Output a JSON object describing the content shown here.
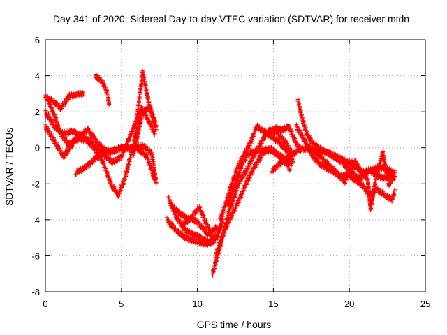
{
  "chart_data": {
    "type": "scatter",
    "title": "Day 341 of 2020, Sidereal Day-to-day VTEC variation (SDTVAR) for receiver mtdn",
    "xlabel": "GPS time / hours",
    "ylabel": "SDTVAR / TECUs",
    "xlim": [
      0,
      25
    ],
    "ylim": [
      -8,
      6
    ],
    "xticks": [
      0,
      5,
      10,
      15,
      20,
      25
    ],
    "yticks": [
      -8,
      -6,
      -4,
      -2,
      0,
      2,
      4,
      6
    ],
    "grid": true,
    "marker": "plus",
    "series": [
      {
        "name": "SDTVAR",
        "color": "#ff0000",
        "tracks": [
          [
            [
              0.0,
              2.8
            ],
            [
              0.5,
              2.6
            ],
            [
              1.0,
              2.2
            ],
            [
              1.6,
              2.9
            ],
            [
              2.5,
              3.0
            ]
          ],
          [
            [
              0.0,
              2.0
            ],
            [
              0.6,
              1.2
            ],
            [
              1.1,
              0.8
            ],
            [
              1.8,
              0.9
            ],
            [
              2.5,
              0.6
            ],
            [
              3.2,
              0.0
            ],
            [
              3.8,
              -0.8
            ],
            [
              4.3,
              -2.0
            ],
            [
              4.8,
              -2.6
            ],
            [
              5.2,
              -1.8
            ],
            [
              5.8,
              0.2
            ],
            [
              6.3,
              2.2
            ],
            [
              6.8,
              1.5
            ],
            [
              7.2,
              0.8
            ]
          ],
          [
            [
              0.0,
              1.2
            ],
            [
              0.5,
              0.5
            ],
            [
              1.2,
              -0.5
            ],
            [
              2.0,
              0.5
            ],
            [
              2.8,
              1.0
            ],
            [
              3.5,
              0.2
            ],
            [
              4.2,
              -0.3
            ],
            [
              4.9,
              0.0
            ],
            [
              5.6,
              0.0
            ],
            [
              6.4,
              0.1
            ],
            [
              7.0,
              -0.3
            ],
            [
              7.3,
              -2.0
            ]
          ],
          [
            [
              0.2,
              2.6
            ],
            [
              0.6,
              1.8
            ],
            [
              1.0,
              0.8
            ],
            [
              1.5,
              0.2
            ],
            [
              2.2,
              0.5
            ],
            [
              2.9,
              0.4
            ],
            [
              3.6,
              -0.2
            ],
            [
              4.4,
              -0.8
            ],
            [
              5.0,
              -0.5
            ],
            [
              5.5,
              0.5
            ],
            [
              6.0,
              1.5
            ],
            [
              6.4,
              4.2
            ],
            [
              6.8,
              2.5
            ],
            [
              7.3,
              1.0
            ]
          ],
          [
            [
              2.0,
              -1.4
            ],
            [
              2.8,
              -1.0
            ],
            [
              3.4,
              -0.5
            ],
            [
              4.0,
              -0.2
            ],
            [
              4.6,
              -0.1
            ],
            [
              5.3,
              0.0
            ],
            [
              6.0,
              0.0
            ],
            [
              6.7,
              -0.5
            ],
            [
              7.2,
              -1.8
            ]
          ],
          [
            [
              3.3,
              4.0
            ],
            [
              3.8,
              3.6
            ],
            [
              4.1,
              3.0
            ],
            [
              4.2,
              2.4
            ]
          ],
          [
            [
              5.8,
              -0.4
            ],
            [
              6.4,
              2.0
            ],
            [
              6.9,
              2.2
            ],
            [
              7.3,
              1.2
            ]
          ],
          [
            [
              8.1,
              -2.8
            ],
            [
              8.6,
              -3.8
            ],
            [
              9.2,
              -4.6
            ],
            [
              9.8,
              -4.8
            ],
            [
              10.4,
              -5.1
            ],
            [
              10.9,
              -5.3
            ],
            [
              11.3,
              -5.0
            ],
            [
              11.7,
              -3.8
            ]
          ],
          [
            [
              8.0,
              -4.0
            ],
            [
              8.5,
              -4.5
            ],
            [
              9.2,
              -5.0
            ],
            [
              10.0,
              -5.2
            ],
            [
              10.6,
              -5.4
            ],
            [
              11.1,
              -5.0
            ],
            [
              11.6,
              -4.4
            ]
          ],
          [
            [
              8.3,
              -3.2
            ],
            [
              8.9,
              -3.7
            ],
            [
              9.5,
              -4.0
            ],
            [
              10.1,
              -3.3
            ],
            [
              10.6,
              -4.2
            ],
            [
              11.0,
              -5.0
            ]
          ],
          [
            [
              9.0,
              -4.3
            ],
            [
              9.6,
              -3.9
            ],
            [
              10.2,
              -4.3
            ],
            [
              10.7,
              -4.8
            ],
            [
              11.3,
              -4.4
            ]
          ],
          [
            [
              11.0,
              -7.0
            ],
            [
              11.3,
              -6.1
            ],
            [
              11.7,
              -4.8
            ],
            [
              12.1,
              -3.5
            ],
            [
              12.5,
              -2.5
            ],
            [
              12.8,
              -1.8
            ],
            [
              13.2,
              -1.3
            ],
            [
              13.6,
              -0.6
            ],
            [
              14.0,
              0.0
            ],
            [
              14.4,
              0.6
            ],
            [
              14.8,
              1.0
            ],
            [
              15.3,
              0.8
            ],
            [
              15.8,
              0.3
            ],
            [
              16.2,
              -0.3
            ]
          ],
          [
            [
              11.2,
              -6.0
            ],
            [
              11.6,
              -5.0
            ],
            [
              12.0,
              -4.2
            ],
            [
              12.4,
              -3.5
            ],
            [
              12.8,
              -2.8
            ],
            [
              13.3,
              -1.8
            ],
            [
              13.8,
              -1.0
            ],
            [
              14.3,
              -0.3
            ],
            [
              14.8,
              0.0
            ],
            [
              15.3,
              -0.4
            ],
            [
              15.8,
              -0.6
            ],
            [
              16.2,
              -0.9
            ]
          ],
          [
            [
              11.5,
              -4.0
            ],
            [
              11.9,
              -3.0
            ],
            [
              12.2,
              -2.2
            ],
            [
              12.6,
              -1.2
            ],
            [
              13.0,
              -0.5
            ],
            [
              13.5,
              0.3
            ],
            [
              13.9,
              1.2
            ],
            [
              14.4,
              0.9
            ],
            [
              14.9,
              0.6
            ],
            [
              15.4,
              0.3
            ],
            [
              15.9,
              -0.2
            ],
            [
              16.3,
              -0.8
            ]
          ],
          [
            [
              12.0,
              -3.2
            ],
            [
              12.5,
              -2.0
            ],
            [
              13.0,
              -0.8
            ],
            [
              13.4,
              -0.3
            ],
            [
              13.9,
              -0.2
            ],
            [
              14.4,
              -0.1
            ],
            [
              15.0,
              -0.2
            ],
            [
              15.6,
              -0.6
            ],
            [
              16.1,
              -1.2
            ]
          ],
          [
            [
              14.7,
              0.9
            ],
            [
              15.2,
              1.1
            ],
            [
              15.6,
              1.0
            ],
            [
              16.0,
              1.2
            ],
            [
              16.4,
              0.4
            ],
            [
              16.8,
              -0.2
            ]
          ],
          [
            [
              14.9,
              -1.3
            ],
            [
              15.4,
              -0.9
            ],
            [
              15.9,
              -0.6
            ],
            [
              16.4,
              -0.3
            ],
            [
              16.8,
              0.0
            ]
          ],
          [
            [
              16.6,
              2.7
            ],
            [
              16.9,
              1.6
            ],
            [
              17.2,
              0.8
            ],
            [
              17.6,
              0.2
            ],
            [
              18.0,
              0.0
            ],
            [
              18.5,
              -0.3
            ],
            [
              19.0,
              -0.5
            ],
            [
              19.5,
              -0.8
            ],
            [
              20.0,
              -1.2
            ],
            [
              20.4,
              -1.6
            ],
            [
              20.8,
              -1.7
            ],
            [
              21.2,
              -1.2
            ],
            [
              21.6,
              -1.4
            ],
            [
              22.0,
              -1.6
            ],
            [
              22.4,
              -1.7
            ],
            [
              22.9,
              -1.4
            ]
          ],
          [
            [
              16.9,
              -0.1
            ],
            [
              17.3,
              0.0
            ],
            [
              17.8,
              -0.2
            ],
            [
              18.2,
              -0.6
            ],
            [
              18.7,
              -1.0
            ],
            [
              19.2,
              -1.4
            ],
            [
              19.7,
              -1.9
            ],
            [
              20.1,
              -1.0
            ],
            [
              20.5,
              -1.1
            ],
            [
              21.0,
              -1.4
            ],
            [
              21.5,
              -1.2
            ],
            [
              22.0,
              -1.1
            ],
            [
              22.5,
              -1.2
            ],
            [
              23.0,
              -1.4
            ]
          ],
          [
            [
              16.5,
              1.2
            ],
            [
              17.0,
              0.5
            ],
            [
              17.4,
              -0.2
            ],
            [
              17.9,
              -0.8
            ],
            [
              18.4,
              -1.1
            ],
            [
              18.9,
              -1.3
            ],
            [
              19.4,
              -1.6
            ],
            [
              19.9,
              -1.5
            ],
            [
              20.4,
              -1.8
            ],
            [
              20.9,
              -2.1
            ],
            [
              21.3,
              -2.6
            ],
            [
              21.8,
              -2.3
            ],
            [
              22.3,
              -2.6
            ],
            [
              22.8,
              -2.9
            ],
            [
              23.0,
              -2.4
            ]
          ],
          [
            [
              17.4,
              0.0
            ],
            [
              17.9,
              -0.3
            ],
            [
              18.4,
              -0.2
            ],
            [
              18.9,
              -0.4
            ],
            [
              19.4,
              -0.6
            ],
            [
              19.9,
              -0.8
            ],
            [
              20.4,
              -0.8
            ],
            [
              20.8,
              -1.4
            ],
            [
              21.2,
              -1.7
            ],
            [
              21.4,
              -3.4
            ],
            [
              21.8,
              -1.5
            ],
            [
              22.2,
              -0.3
            ],
            [
              22.6,
              -2.0
            ],
            [
              23.0,
              -1.6
            ]
          ]
        ]
      }
    ]
  }
}
